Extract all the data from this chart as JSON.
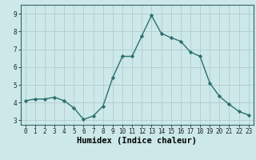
{
  "x": [
    0,
    1,
    2,
    3,
    4,
    5,
    6,
    7,
    8,
    9,
    10,
    11,
    12,
    13,
    14,
    15,
    16,
    17,
    18,
    19,
    20,
    21,
    22,
    23
  ],
  "y": [
    4.1,
    4.2,
    4.2,
    4.3,
    4.1,
    3.7,
    3.05,
    3.25,
    3.8,
    5.4,
    6.6,
    6.6,
    7.75,
    8.9,
    7.9,
    7.65,
    7.45,
    6.85,
    6.6,
    5.1,
    4.35,
    3.9,
    3.5,
    3.3
  ],
  "line_color": "#2d7070",
  "marker": "D",
  "marker_size": 2.2,
  "line_width": 1.0,
  "bg_color": "#cce8e8",
  "grid_color": "#b0cccc",
  "xlabel": "Humidex (Indice chaleur)",
  "xlim": [
    -0.5,
    23.5
  ],
  "ylim": [
    2.75,
    9.5
  ],
  "yticks": [
    3,
    4,
    5,
    6,
    7,
    8,
    9
  ],
  "xticks": [
    0,
    1,
    2,
    3,
    4,
    5,
    6,
    7,
    8,
    9,
    10,
    11,
    12,
    13,
    14,
    15,
    16,
    17,
    18,
    19,
    20,
    21,
    22,
    23
  ],
  "xtick_labels": [
    "0",
    "1",
    "2",
    "3",
    "4",
    "5",
    "6",
    "7",
    "8",
    "9",
    "10",
    "11",
    "12",
    "13",
    "14",
    "15",
    "16",
    "17",
    "18",
    "19",
    "20",
    "21",
    "22",
    "23"
  ],
  "tick_fontsize": 5.5,
  "xlabel_fontsize": 7.5
}
